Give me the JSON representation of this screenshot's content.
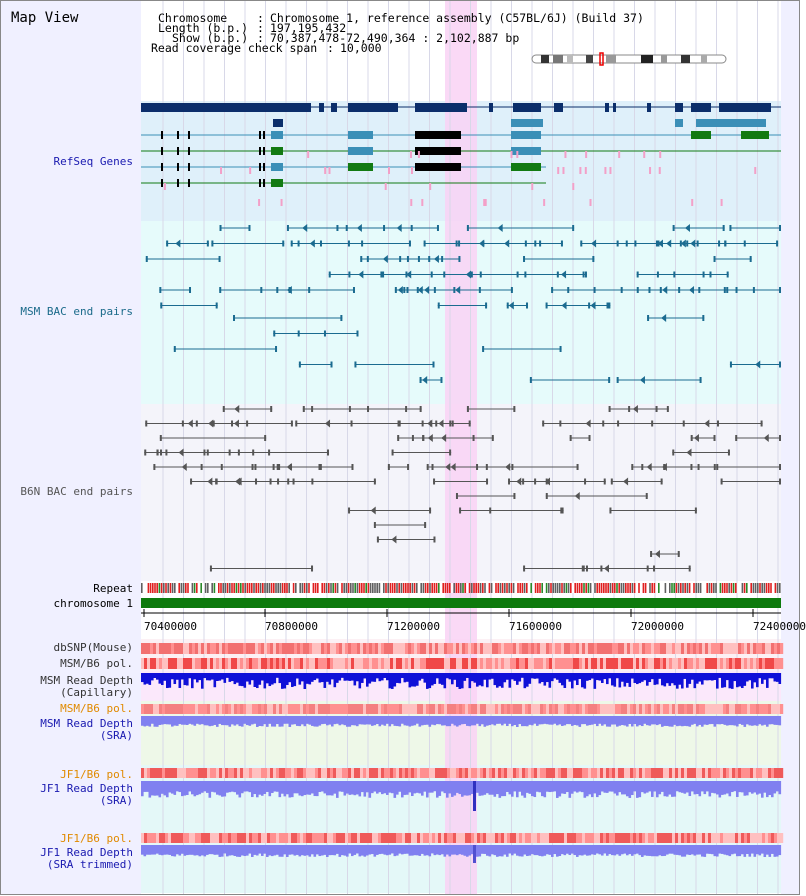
{
  "header": {
    "title": "Map View",
    "chromosome_key": "Chromosome",
    "chromosome_value": "Chromosome 1, reference assembly (C57BL/6J) (Build 37)",
    "length_key": "Length (b.p.)",
    "length_value": "197,195,432",
    "show_key": "Show (b.p.)",
    "show_value": "70,387,478-72,490,364 : 2,102,887 bp",
    "coverage_key": "Read coverage check span",
    "coverage_value": "10,000"
  },
  "tracks": {
    "refseq": "RefSeq Genes",
    "msm_bac": "MSM BAC end pairs",
    "b6n_bac": "B6N BAC end pairs",
    "repeat": "Repeat",
    "chromosome": "chromosome 1",
    "dbsnp": "dbSNP(Mouse)",
    "msm_b6_pol": "MSM/B6 pol.",
    "msm_depth_cap_1": "MSM Read Depth",
    "msm_depth_cap_2": "(Capillary)",
    "msm_b6_pol_2": "MSM/B6 pol.",
    "msm_depth_sra_1": "MSM Read Depth",
    "msm_depth_sra_2": "(SRA)",
    "jf1_b6_pol": "JF1/B6 pol.",
    "jf1_depth_sra_1": "JF1 Read Depth",
    "jf1_depth_sra_2": "(SRA)",
    "jf1_b6_pol_2": "JF1/B6 pol.",
    "jf1_depth_trim_1": "JF1 Read Depth",
    "jf1_depth_trim_2": "(SRA trimmed)"
  },
  "axis": {
    "ticks": [
      "70400000",
      "70800000",
      "71200000",
      "71600000",
      "72000000",
      "72400000"
    ]
  },
  "colors": {
    "refseq_bg": "#dff0fa",
    "msm_bg": "#e6fbfb",
    "b6n_bg": "#f4f4fa",
    "highlight": "#f9d2f5",
    "gene_dark": "#0b2e6b",
    "gene_teal": "#3b8fb7",
    "gene_green": "#127a12",
    "bac_msm": "#1b6b90",
    "bac_b6n": "#555555",
    "depth_msm_cap": "#1010d8",
    "depth_sra": "#8080f0",
    "pol_red": "#ee3333"
  }
}
